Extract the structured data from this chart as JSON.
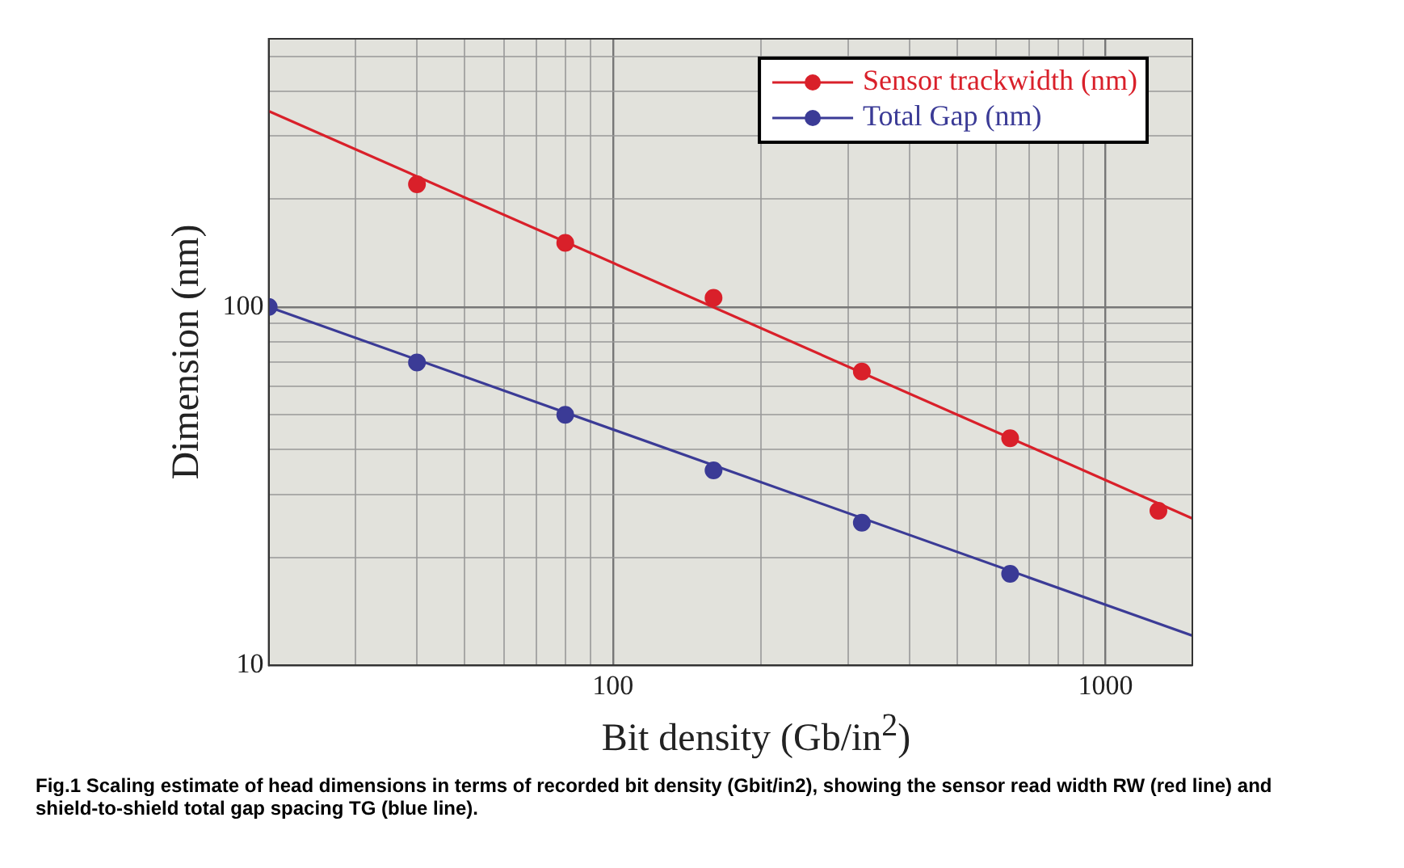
{
  "chart_data": {
    "type": "scatter",
    "xlabel": "Bit density (Gb/in$^{2}$)",
    "ylabel": "Dimension (nm)",
    "log": "xy",
    "grid": true,
    "legend": "top right",
    "marker": "circle",
    "xlim": [
      20,
      1500
    ],
    "ylim": [
      10,
      560
    ],
    "xticks": [
      {
        "value": 20,
        "label": null
      },
      {
        "value": 30,
        "label": null
      },
      {
        "value": 40,
        "label": null
      },
      {
        "value": 50,
        "label": null
      },
      {
        "value": 60,
        "label": null
      },
      {
        "value": 70,
        "label": null
      },
      {
        "value": 80,
        "label": null
      },
      {
        "value": 90,
        "label": null
      },
      100,
      {
        "value": 200,
        "label": null
      },
      {
        "value": 300,
        "label": null
      },
      {
        "value": 400,
        "label": null
      },
      {
        "value": 500,
        "label": null
      },
      {
        "value": 600,
        "label": null
      },
      {
        "value": 700,
        "label": null
      },
      {
        "value": 800,
        "label": null
      },
      {
        "value": 900,
        "label": null
      },
      1000
    ],
    "yticks": [
      10,
      {
        "value": 20,
        "label": null
      },
      {
        "value": 30,
        "label": null
      },
      {
        "value": 40,
        "label": null
      },
      {
        "value": 50,
        "label": null
      },
      {
        "value": 60,
        "label": null
      },
      {
        "value": 70,
        "label": null
      },
      {
        "value": 80,
        "label": null
      },
      {
        "value": 90,
        "label": null
      },
      100,
      {
        "value": 200,
        "label": null
      },
      {
        "value": 300,
        "label": null
      },
      {
        "value": 400,
        "label": null
      },
      {
        "value": 500,
        "label": null
      }
    ],
    "series": [
      {
        "name": "Sensor trackwidth (nm)",
        "color": "#d9202a",
        "x": [
          40,
          80,
          160,
          320,
          640,
          1280
        ],
        "values": [
          220,
          151,
          106,
          66,
          43,
          27
        ]
      },
      {
        "name": "Total Gap (nm)",
        "color": "#3b3b96",
        "x": [
          20,
          40,
          80,
          160,
          320,
          640
        ],
        "values": [
          100,
          70,
          50,
          35,
          25,
          18
        ]
      },
      {
        "type": "line",
        "color": "#d9202a",
        "marker": "none",
        "x": [
          20,
          1500
        ],
        "values": [
          352,
          25.7
        ]
      },
      {
        "type": "line",
        "color": "#3b3b96",
        "marker": "none",
        "x": [
          20,
          1500
        ],
        "values": [
          100,
          12.1
        ]
      }
    ],
    "annotations": [
      "Fig.1 Scaling estimate of head dimensions in terms of recorded bit density (Gbit/in2), showing the sensor read width RW (red line) and shield-to-shield total gap spacing TG (blue line)."
    ]
  }
}
